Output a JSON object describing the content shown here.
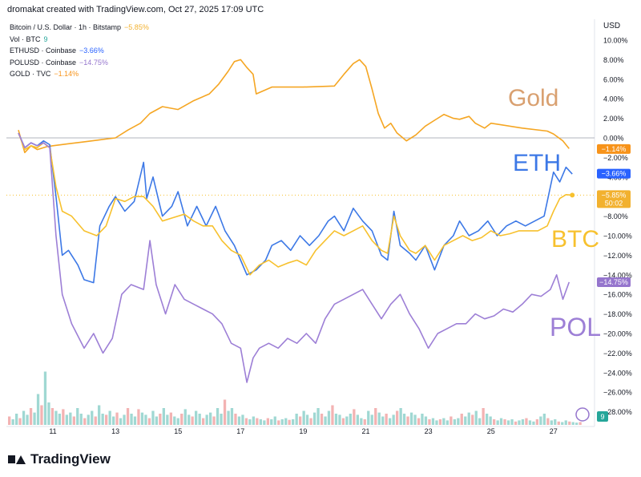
{
  "header": {
    "attribution": "dromakat created with TradingView.com, Oct 27, 2025 17:09 UTC"
  },
  "legend": [
    {
      "label": "Bitcoin / U.S. Dollar · 1h · Bitstamp",
      "value": "−5.85%",
      "color": "#f2b12f"
    },
    {
      "label": "Vol · BTC",
      "value": "9",
      "color": "#26a69a"
    },
    {
      "label": "ETHUSD · Coinbase",
      "value": "−3.66%",
      "color": "#2962ff"
    },
    {
      "label": "POLUSD · Coinbase",
      "value": "−14.75%",
      "color": "#9575cd"
    },
    {
      "label": "GOLD · TVC",
      "value": "−1.14%",
      "color": "#f7931a"
    }
  ],
  "price_scale_currency": "USD",
  "branding": {
    "logo_text": "TradingView"
  },
  "colors": {
    "btc": "#f7c12e",
    "eth": "#3c78e6",
    "pol": "#9d7fd6",
    "gold": "#f5a623",
    "grid_zero": "#b2b5be"
  },
  "chart_data": {
    "type": "line",
    "title": "",
    "xlabel": "",
    "ylabel": "",
    "x_ticks": [
      "11",
      "13",
      "15",
      "17",
      "19",
      "21",
      "23",
      "25",
      "27"
    ],
    "y_ticks": [
      "10.00%",
      "8.00%",
      "6.00%",
      "4.00%",
      "2.00%",
      "0.00%",
      "−2.00%",
      "−4.00%",
      "−6.00%",
      "−8.00%",
      "−10.00%",
      "−12.00%",
      "−14.00%",
      "−16.00%",
      "−18.00%",
      "−20.00%",
      "−22.00%",
      "−24.00%",
      "−26.00%",
      "−28.00%"
    ],
    "ylim": [
      -29,
      11
    ],
    "xlim": [
      9.9,
      28.0
    ],
    "annotations": [
      {
        "text": "Gold",
        "color": "#d9a070"
      },
      {
        "text": "ETH",
        "color": "#3c78e6"
      },
      {
        "text": "BTC",
        "color": "#f7c12e"
      },
      {
        "text": "POL",
        "color": "#9d7fd6"
      }
    ],
    "last_value_labels": [
      {
        "series": "GOLD",
        "text": "−1.14%",
        "value": -1.14,
        "color": "#f7931a"
      },
      {
        "series": "ETH",
        "text": "−3.66%",
        "value": -3.66,
        "color": "#2962ff"
      },
      {
        "series": "BTC",
        "text": "−5.85%",
        "sub": "50:02",
        "value": -5.85,
        "color": "#f2b12f"
      },
      {
        "series": "POL",
        "text": "−14.75%",
        "value": -14.75,
        "color": "#9575cd"
      }
    ],
    "volume_badge": "9",
    "series": [
      {
        "name": "GOLD",
        "color": "#f5a623",
        "x": [
          9.9,
          10.1,
          10.3,
          10.5,
          10.8,
          11.0,
          11.5,
          12.0,
          12.5,
          13.0,
          13.4,
          13.8,
          14.1,
          14.5,
          15.0,
          15.5,
          16.0,
          16.3,
          16.6,
          16.8,
          17.0,
          17.2,
          17.4,
          17.5,
          18.0,
          19.0,
          20.0,
          20.3,
          20.6,
          20.8,
          21.0,
          21.2,
          21.4,
          21.6,
          21.8,
          22.0,
          22.3,
          22.6,
          22.9,
          23.2,
          23.5,
          23.8,
          24.0,
          24.3,
          24.5,
          24.8,
          25.0,
          26.0,
          26.8,
          27.0,
          27.3,
          27.5
        ],
        "y": [
          0.8,
          -1.5,
          -0.8,
          -1.2,
          -0.9,
          -0.8,
          -0.6,
          -0.4,
          -0.2,
          0.0,
          0.8,
          1.5,
          2.5,
          3.2,
          2.9,
          3.8,
          4.5,
          5.5,
          6.8,
          7.8,
          8.0,
          7.2,
          6.5,
          4.5,
          5.2,
          5.2,
          5.3,
          6.5,
          7.6,
          8.0,
          7.3,
          5.0,
          2.5,
          1.0,
          1.5,
          0.5,
          -0.3,
          0.3,
          1.2,
          1.8,
          2.4,
          2.0,
          1.9,
          2.2,
          1.5,
          1.0,
          1.5,
          1.0,
          0.7,
          0.4,
          -0.3,
          -1.1
        ]
      },
      {
        "name": "ETH",
        "color": "#3c78e6",
        "x": [
          9.9,
          10.1,
          10.3,
          10.5,
          10.7,
          10.9,
          11.1,
          11.3,
          11.5,
          11.8,
          12.0,
          12.3,
          12.5,
          12.8,
          13.0,
          13.3,
          13.6,
          13.9,
          14.0,
          14.2,
          14.5,
          14.8,
          15.0,
          15.3,
          15.6,
          15.9,
          16.2,
          16.5,
          16.8,
          17.0,
          17.2,
          17.5,
          17.8,
          18.0,
          18.3,
          18.6,
          18.9,
          19.2,
          19.5,
          19.8,
          20.0,
          20.3,
          20.6,
          20.9,
          21.2,
          21.5,
          21.7,
          21.9,
          22.1,
          22.4,
          22.6,
          22.9,
          23.2,
          23.5,
          23.8,
          24.0,
          24.3,
          24.6,
          24.9,
          25.2,
          25.5,
          25.8,
          26.1,
          26.4,
          26.7,
          27.0,
          27.2,
          27.4,
          27.6
        ],
        "y": [
          0.5,
          -1.0,
          -0.5,
          -0.8,
          -0.3,
          -0.7,
          -6.0,
          -12.0,
          -11.5,
          -13.0,
          -14.5,
          -14.8,
          -9.0,
          -7.0,
          -6.0,
          -7.5,
          -6.5,
          -2.5,
          -6.2,
          -4.0,
          -8.0,
          -7.0,
          -5.5,
          -9.0,
          -7.0,
          -9.0,
          -7.0,
          -9.5,
          -11.0,
          -12.5,
          -14.0,
          -13.5,
          -12.5,
          -11.0,
          -10.5,
          -11.5,
          -10.0,
          -11.0,
          -10.0,
          -8.5,
          -8.0,
          -9.5,
          -7.2,
          -8.5,
          -9.5,
          -12.0,
          -12.5,
          -7.5,
          -11.0,
          -11.8,
          -12.5,
          -11.0,
          -13.5,
          -11.0,
          -10.0,
          -8.5,
          -10.0,
          -9.5,
          -8.5,
          -10.0,
          -9.0,
          -8.5,
          -9.0,
          -8.5,
          -8.0,
          -3.5,
          -4.5,
          -3.0,
          -3.7
        ]
      },
      {
        "name": "BTC",
        "color": "#f7c12e",
        "x": [
          9.9,
          10.1,
          10.3,
          10.5,
          10.7,
          10.9,
          11.1,
          11.3,
          11.6,
          12.0,
          12.4,
          12.7,
          13.0,
          13.3,
          13.6,
          13.9,
          14.2,
          14.5,
          14.8,
          15.2,
          15.5,
          15.8,
          16.1,
          16.4,
          16.7,
          17.0,
          17.3,
          17.6,
          17.9,
          18.2,
          18.5,
          18.8,
          19.1,
          19.4,
          19.7,
          20.0,
          20.3,
          20.6,
          20.9,
          21.2,
          21.5,
          21.7,
          21.9,
          22.1,
          22.4,
          22.6,
          22.9,
          23.2,
          23.5,
          23.8,
          24.1,
          24.4,
          24.7,
          25.0,
          25.3,
          25.6,
          25.9,
          26.2,
          26.5,
          26.8,
          27.0,
          27.2,
          27.4,
          27.6
        ],
        "y": [
          0.5,
          -1.2,
          -0.8,
          -1.0,
          -0.5,
          -1.0,
          -5.0,
          -7.5,
          -8.0,
          -9.5,
          -10.0,
          -9.0,
          -6.2,
          -6.5,
          -6.0,
          -6.0,
          -7.0,
          -8.5,
          -8.2,
          -7.8,
          -8.5,
          -9.0,
          -9.0,
          -10.5,
          -11.5,
          -12.0,
          -14.0,
          -13.0,
          -12.5,
          -13.2,
          -12.8,
          -12.5,
          -13.0,
          -11.5,
          -10.5,
          -9.5,
          -10.0,
          -9.5,
          -9.0,
          -10.5,
          -11.5,
          -11.8,
          -8.0,
          -10.0,
          -11.5,
          -11.8,
          -11.0,
          -12.5,
          -11.0,
          -10.5,
          -10.0,
          -10.5,
          -10.2,
          -9.5,
          -10.0,
          -9.8,
          -9.5,
          -9.5,
          -9.5,
          -9.0,
          -7.5,
          -6.2,
          -5.8,
          -5.85
        ]
      },
      {
        "name": "POL",
        "color": "#9d7fd6",
        "x": [
          9.9,
          10.1,
          10.3,
          10.5,
          10.7,
          10.9,
          11.1,
          11.3,
          11.6,
          12.0,
          12.3,
          12.6,
          12.9,
          13.2,
          13.5,
          13.9,
          14.1,
          14.3,
          14.6,
          14.9,
          15.2,
          15.5,
          15.8,
          16.1,
          16.4,
          16.7,
          17.0,
          17.2,
          17.4,
          17.6,
          17.9,
          18.2,
          18.5,
          18.8,
          19.1,
          19.4,
          19.7,
          20.0,
          20.3,
          20.6,
          20.9,
          21.2,
          21.5,
          21.8,
          22.1,
          22.4,
          22.7,
          23.0,
          23.3,
          23.6,
          23.9,
          24.2,
          24.5,
          24.8,
          25.1,
          25.4,
          25.7,
          26.0,
          26.3,
          26.6,
          26.9,
          27.1,
          27.3,
          27.5
        ],
        "y": [
          0.5,
          -1.0,
          -0.5,
          -0.8,
          -0.5,
          -1.0,
          -10.0,
          -16.0,
          -19.0,
          -21.5,
          -20.0,
          -22.0,
          -20.5,
          -16.0,
          -15.0,
          -15.5,
          -10.5,
          -15.0,
          -18.0,
          -15.0,
          -16.5,
          -17.0,
          -17.5,
          -18.0,
          -19.0,
          -21.0,
          -21.5,
          -25.0,
          -22.5,
          -21.5,
          -21.0,
          -21.5,
          -20.5,
          -21.0,
          -20.0,
          -21.0,
          -18.5,
          -17.0,
          -16.5,
          -16.0,
          -15.5,
          -17.0,
          -18.5,
          -17.0,
          -16.0,
          -18.0,
          -19.5,
          -21.5,
          -20.0,
          -19.5,
          -19.0,
          -19.0,
          -18.0,
          -18.5,
          -18.2,
          -17.5,
          -17.8,
          -17.0,
          -16.0,
          -16.2,
          -15.5,
          -14.0,
          -16.5,
          -14.75
        ]
      }
    ],
    "volume": [
      0.15,
      0.1,
      0.2,
      0.12,
      0.25,
      0.18,
      0.3,
      0.22,
      0.55,
      0.35,
      0.95,
      0.4,
      0.3,
      0.25,
      0.2,
      0.28,
      0.18,
      0.22,
      0.15,
      0.3,
      0.2,
      0.12,
      0.18,
      0.25,
      0.15,
      0.35,
      0.2,
      0.18,
      0.25,
      0.15,
      0.22,
      0.12,
      0.18,
      0.3,
      0.2,
      0.15,
      0.28,
      0.22,
      0.18,
      0.12,
      0.25,
      0.15,
      0.2,
      0.3,
      0.18,
      0.22,
      0.15,
      0.12,
      0.2,
      0.28,
      0.18,
      0.15,
      0.25,
      0.2,
      0.12,
      0.18,
      0.22,
      0.15,
      0.3,
      0.2,
      0.45,
      0.25,
      0.3,
      0.2,
      0.15,
      0.18,
      0.12,
      0.1,
      0.15,
      0.12,
      0.1,
      0.08,
      0.12,
      0.1,
      0.15,
      0.08,
      0.1,
      0.12,
      0.09,
      0.1,
      0.2,
      0.15,
      0.25,
      0.18,
      0.12,
      0.22,
      0.3,
      0.2,
      0.15,
      0.25,
      0.35,
      0.2,
      0.18,
      0.12,
      0.15,
      0.2,
      0.28,
      0.18,
      0.12,
      0.1,
      0.25,
      0.18,
      0.3,
      0.22,
      0.15,
      0.2,
      0.12,
      0.18,
      0.25,
      0.3,
      0.2,
      0.15,
      0.22,
      0.18,
      0.12,
      0.2,
      0.15,
      0.1,
      0.12,
      0.08,
      0.1,
      0.12,
      0.08,
      0.15,
      0.1,
      0.12,
      0.2,
      0.15,
      0.22,
      0.18,
      0.25,
      0.12,
      0.3,
      0.2,
      0.15,
      0.1,
      0.08,
      0.12,
      0.1,
      0.08,
      0.1,
      0.06,
      0.08,
      0.1,
      0.12,
      0.08,
      0.06,
      0.1,
      0.15,
      0.2,
      0.12,
      0.08,
      0.1,
      0.06,
      0.05,
      0.08,
      0.06,
      0.05,
      0.04,
      0.05
    ]
  }
}
